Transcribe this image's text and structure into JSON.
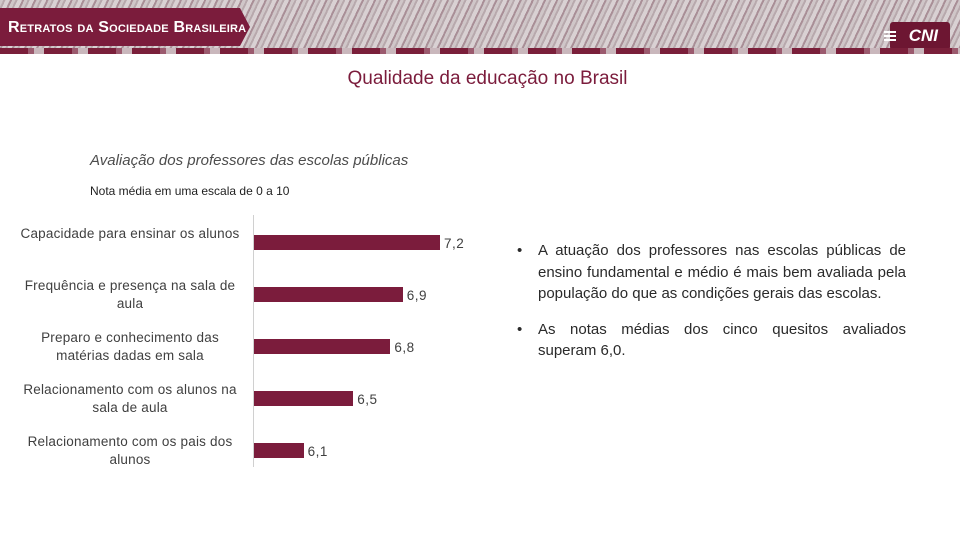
{
  "header": {
    "brand": "Retratos da Sociedade Brasileira",
    "logo": "CNI"
  },
  "title": "Qualidade da educação no Brasil",
  "subtitle": "Avaliação dos professores das escolas públicas",
  "note": "Nota média em uma escala de 0 a 10",
  "chart_data": {
    "type": "bar",
    "orientation": "horizontal",
    "categories": [
      "Capacidade para ensinar os alunos",
      "Frequência e presença na sala de aula",
      "Preparo e conhecimento das matérias dadas em sala",
      "Relacionamento com os alunos na sala de aula",
      "Relacionamento com os pais dos alunos"
    ],
    "values": [
      7.2,
      6.9,
      6.8,
      6.5,
      6.1
    ],
    "value_labels": [
      "7,2",
      "6,9",
      "6,8",
      "6,5",
      "6,1"
    ],
    "xlim": [
      5.7,
      7.2
    ],
    "color": "#7b1c3c",
    "grid": false
  },
  "bullets": [
    "A atuação dos professores nas escolas públicas de ensino fundamental e médio é mais bem avaliada pela população do que as condições gerais das escolas.",
    "As notas médias dos cinco quesitos avaliados superam 6,0."
  ],
  "bullet_marker": "•"
}
